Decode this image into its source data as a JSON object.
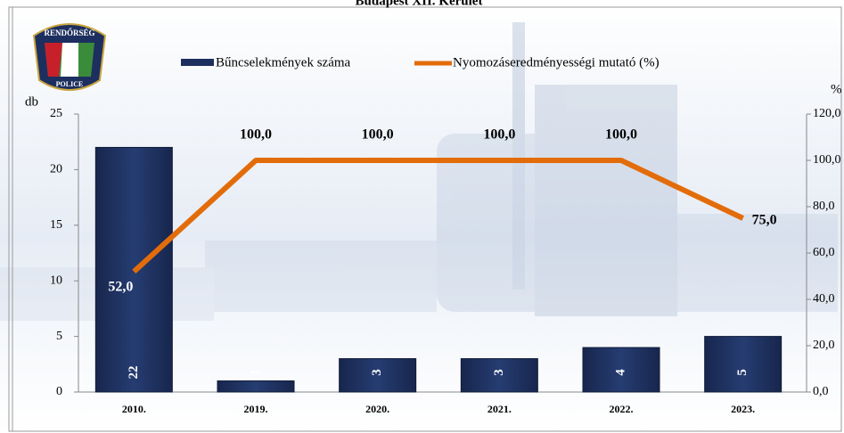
{
  "logo": {
    "top": "RENDŐRSÉG",
    "bottom": "POLICE"
  },
  "chart_data": {
    "type": "bar-line",
    "title": "Budapest XII. Kerület",
    "y_label": "db",
    "y2_label": "%",
    "categories": [
      "2010.",
      "2019.",
      "2020.",
      "2021.",
      "2022.",
      "2023."
    ],
    "series": [
      {
        "name": "Bűncselekmények száma",
        "type": "bar",
        "color": "#1d2f5e",
        "values": [
          22,
          1,
          3,
          3,
          4,
          5
        ]
      },
      {
        "name": "Nyomozáseredményességi mutató (%)",
        "type": "line",
        "axis": "y2",
        "color": "#e36c0a",
        "values": [
          52,
          100,
          100,
          100,
          100,
          75
        ],
        "value_labels": [
          "52,0",
          "100,0",
          "100,0",
          "100,0",
          "100,0",
          "75,0"
        ]
      }
    ],
    "ylim": [
      0,
      25
    ],
    "yticks": [
      0,
      5,
      10,
      15,
      20,
      25
    ],
    "y2lim": [
      0,
      120
    ],
    "y2ticks": [
      {
        "value": 0,
        "label": "0,0"
      },
      {
        "value": 20,
        "label": "20,0"
      },
      {
        "value": 40,
        "label": "40,0"
      },
      {
        "value": 60,
        "label": "60,0"
      },
      {
        "value": 80,
        "label": "80,0"
      },
      {
        "value": 100,
        "label": "100,0"
      },
      {
        "value": 120,
        "label": "120,0"
      }
    ],
    "legend": "top"
  }
}
